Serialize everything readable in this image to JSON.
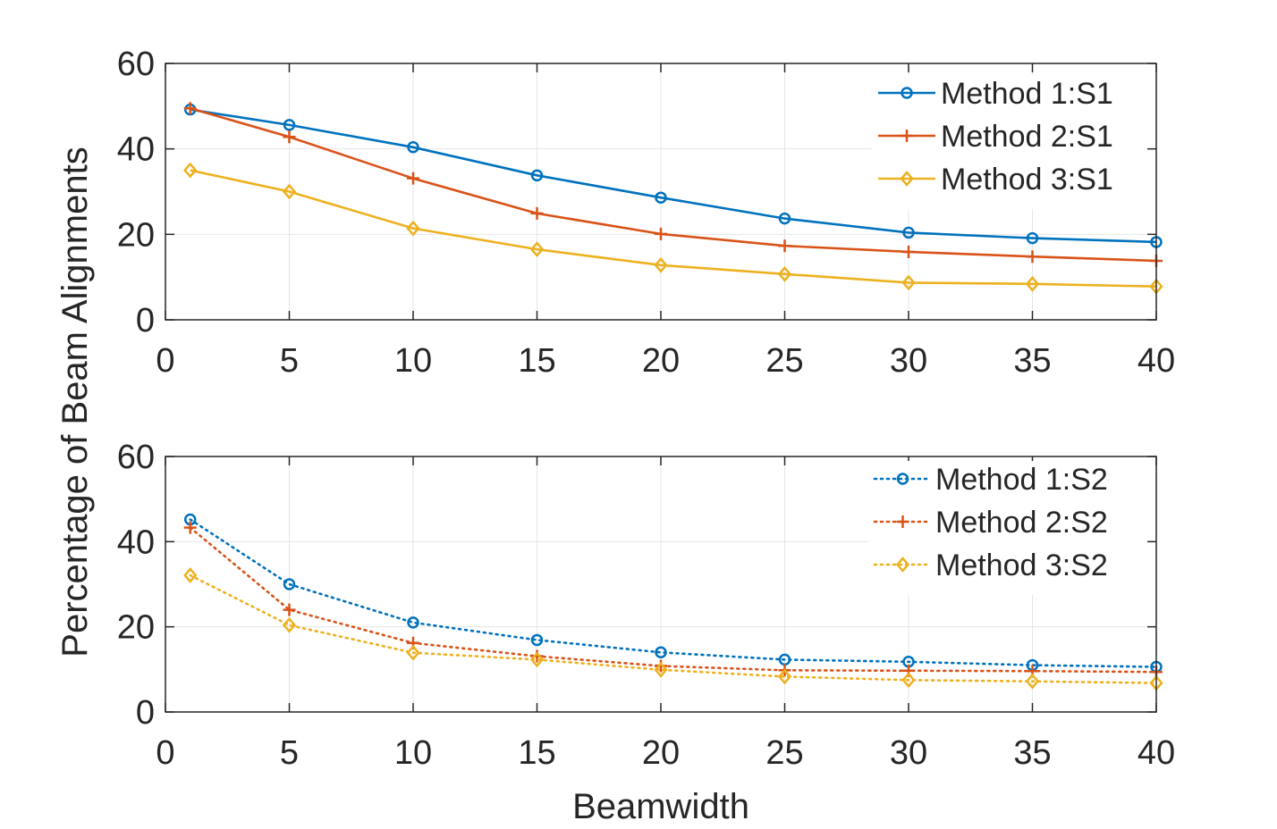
{
  "figure": {
    "ylabel": "Percentage of Beam Alignments",
    "xlabel": "Beamwidth"
  },
  "chart_data": [
    {
      "type": "line",
      "x": [
        1,
        5,
        10,
        15,
        20,
        25,
        30,
        35,
        40
      ],
      "xlim": [
        0,
        40
      ],
      "ylim": [
        0,
        60
      ],
      "xticks": [
        0,
        5,
        10,
        15,
        20,
        25,
        30,
        35,
        40
      ],
      "yticks": [
        0,
        20,
        40,
        60
      ],
      "xtick_labels": [
        "0",
        "5",
        "10",
        "15",
        "20",
        "25",
        "30",
        "35",
        "40"
      ],
      "ytick_labels": [
        "0",
        "20",
        "40",
        "60"
      ],
      "grid": true,
      "legend_position": "top-right",
      "series": [
        {
          "name": "Method 1:S1",
          "color": "#0072BD",
          "marker": "circle",
          "linestyle": "solid",
          "values": [
            49.2,
            45.6,
            40.4,
            33.8,
            28.6,
            23.7,
            20.4,
            19.1,
            18.2
          ]
        },
        {
          "name": "Method 2:S1",
          "color": "#D95319",
          "marker": "plus",
          "linestyle": "solid",
          "values": [
            49.5,
            42.8,
            33.1,
            24.9,
            20.1,
            17.3,
            15.9,
            14.8,
            13.8
          ]
        },
        {
          "name": "Method 3:S1",
          "color": "#EDB120",
          "marker": "diamond",
          "linestyle": "solid",
          "values": [
            35.0,
            30.0,
            21.4,
            16.5,
            12.8,
            10.7,
            8.7,
            8.4,
            7.8
          ]
        }
      ]
    },
    {
      "type": "line",
      "x": [
        1,
        5,
        10,
        15,
        20,
        25,
        30,
        35,
        40
      ],
      "xlim": [
        0,
        40
      ],
      "ylim": [
        0,
        60
      ],
      "xticks": [
        0,
        5,
        10,
        15,
        20,
        25,
        30,
        35,
        40
      ],
      "yticks": [
        0,
        20,
        40,
        60
      ],
      "xtick_labels": [
        "0",
        "5",
        "10",
        "15",
        "20",
        "25",
        "30",
        "35",
        "40"
      ],
      "ytick_labels": [
        "0",
        "20",
        "40",
        "60"
      ],
      "grid": true,
      "legend_position": "top-right",
      "series": [
        {
          "name": "Method 1:S2",
          "color": "#0072BD",
          "marker": "circle",
          "linestyle": "dotted",
          "values": [
            45.2,
            30.0,
            21.0,
            16.9,
            14.0,
            12.3,
            11.8,
            11.0,
            10.6
          ]
        },
        {
          "name": "Method 2:S2",
          "color": "#D95319",
          "marker": "plus",
          "linestyle": "dotted",
          "values": [
            43.3,
            24.0,
            16.2,
            13.1,
            10.8,
            9.8,
            9.7,
            9.6,
            9.4
          ]
        },
        {
          "name": "Method 3:S2",
          "color": "#EDB120",
          "marker": "diamond",
          "linestyle": "dotted",
          "values": [
            32.1,
            20.4,
            13.9,
            12.3,
            9.9,
            8.3,
            7.5,
            7.2,
            6.8
          ]
        }
      ]
    }
  ]
}
